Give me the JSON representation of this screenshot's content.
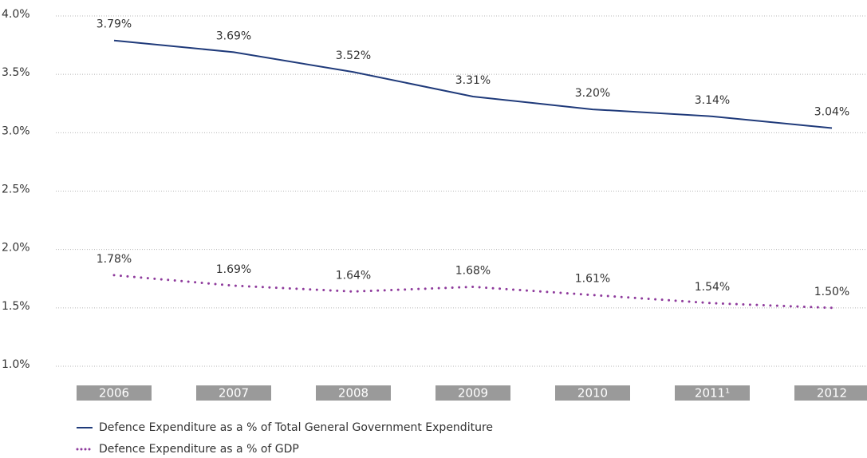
{
  "chart_data": {
    "type": "line",
    "categories": [
      "2006",
      "2007",
      "2008",
      "2009",
      "2010",
      "2011¹",
      "2012"
    ],
    "series": [
      {
        "name": "Defence Expenditure as a % of Total General Government Expenditure",
        "color": "#1f3a7a",
        "style": "solid",
        "values": [
          3.79,
          3.69,
          3.52,
          3.31,
          3.2,
          3.14,
          3.04
        ],
        "value_labels": [
          "3.79%",
          "3.69%",
          "3.52%",
          "3.31%",
          "3.20%",
          "3.14%",
          "3.04%"
        ]
      },
      {
        "name": "Defence Expenditure as a % of GDP",
        "color": "#8e3a9c",
        "style": "dotted",
        "values": [
          1.78,
          1.69,
          1.64,
          1.68,
          1.61,
          1.54,
          1.5
        ],
        "value_labels": [
          "1.78%",
          "1.69%",
          "1.64%",
          "1.68%",
          "1.61%",
          "1.54%",
          "1.50%"
        ]
      }
    ],
    "ylim": [
      1.0,
      4.0
    ],
    "yticks": [
      {
        "value": 1.0,
        "label": "1.0%"
      },
      {
        "value": 1.5,
        "label": "1.5%"
      },
      {
        "value": 2.0,
        "label": "2.0%"
      },
      {
        "value": 2.5,
        "label": "2.5%"
      },
      {
        "value": 3.0,
        "label": "3.0%"
      },
      {
        "value": 3.5,
        "label": "3.5%"
      },
      {
        "value": 4.0,
        "label": "4.0%"
      }
    ],
    "grid": true,
    "legend": "bottom-left"
  }
}
